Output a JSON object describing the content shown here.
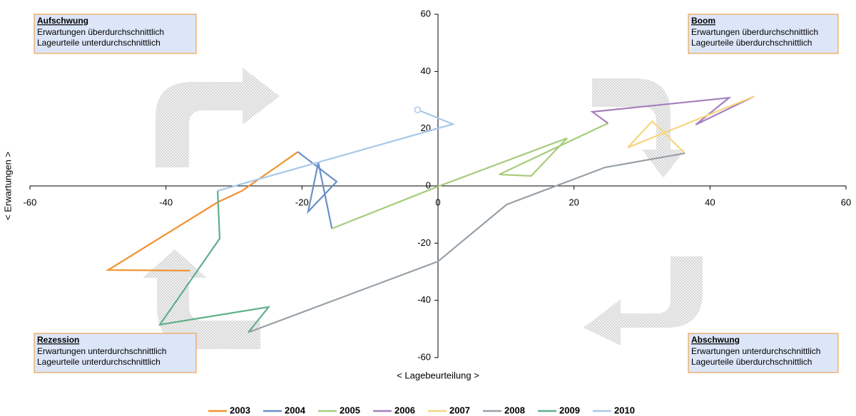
{
  "chart_data": {
    "type": "line",
    "xlabel": "< Lagebeurteilung >",
    "ylabel": "< Erwartungen >",
    "xlim": [
      -60,
      60
    ],
    "ylim": [
      -60,
      60
    ],
    "xticks": [
      -60,
      -40,
      -20,
      0,
      20,
      40,
      60
    ],
    "yticks": [
      -60,
      -40,
      -20,
      0,
      20,
      40,
      60
    ],
    "quadrants": [
      {
        "title": "Aufschwung",
        "lines": [
          "Erwartungen überdurchschnittlich",
          "Lageurteile unterdurchschnittlich"
        ]
      },
      {
        "title": "Boom",
        "lines": [
          "Erwartungen überdurchschnittlich",
          "Lageurteile überdurchschnittlich"
        ]
      },
      {
        "title": "Rezession",
        "lines": [
          "Erwartungen unterdurchschnittlich",
          "Lageurteile unterdurchschnittlich"
        ]
      },
      {
        "title": "Abschwung",
        "lines": [
          "Erwartungen unterdurchschnittlich",
          "Lageurteile überdurchschnittlich"
        ]
      }
    ],
    "series": [
      {
        "name": "2003",
        "color": "#f0912f",
        "x": [
          -36.5,
          -48.5,
          -32.4,
          -28.8,
          -20.6
        ],
        "values": [
          -29.6,
          -29.4,
          -5.7,
          -1.7,
          11.9
        ]
      },
      {
        "name": "2004",
        "color": "#6b8fc7",
        "x": [
          -20.6,
          -14.9,
          -19.1,
          -17.6,
          -15.6
        ],
        "values": [
          11.9,
          1.5,
          -9.0,
          8.2,
          -14.9
        ]
      },
      {
        "name": "2005",
        "color": "#a7cc7c",
        "x": [
          -15.6,
          0,
          19.0,
          13.7,
          9.0,
          25.0
        ],
        "values": [
          -14.9,
          -0.2,
          16.7,
          3.5,
          4.0,
          21.9
        ]
      },
      {
        "name": "2006",
        "color": "#a57fbc",
        "x": [
          25.0,
          22.7,
          42.8,
          37.9,
          46.5
        ],
        "values": [
          21.9,
          25.9,
          30.8,
          21.4,
          31.3
        ]
      },
      {
        "name": "2007",
        "color": "#f8d57e",
        "x": [
          46.5,
          27.9,
          31.5,
          36.3
        ],
        "values": [
          31.3,
          13.4,
          22.6,
          11.4
        ]
      },
      {
        "name": "2008",
        "color": "#98a1a8",
        "x": [
          36.3,
          24.6,
          10.1,
          0,
          -27.9
        ],
        "values": [
          11.4,
          6.5,
          -6.5,
          -26.4,
          -51.2
        ]
      },
      {
        "name": "2009",
        "color": "#5faf8a",
        "x": [
          -27.9,
          -24.9,
          -40.9,
          -32.1,
          -32.4
        ],
        "values": [
          -51.2,
          -42.3,
          -48.5,
          -18.4,
          -1.7
        ]
      },
      {
        "name": "2010",
        "color": "#a9c8ea",
        "x": [
          -32.4,
          2.2,
          -3.0
        ],
        "values": [
          -1.7,
          21.6,
          26.6
        ]
      }
    ]
  }
}
